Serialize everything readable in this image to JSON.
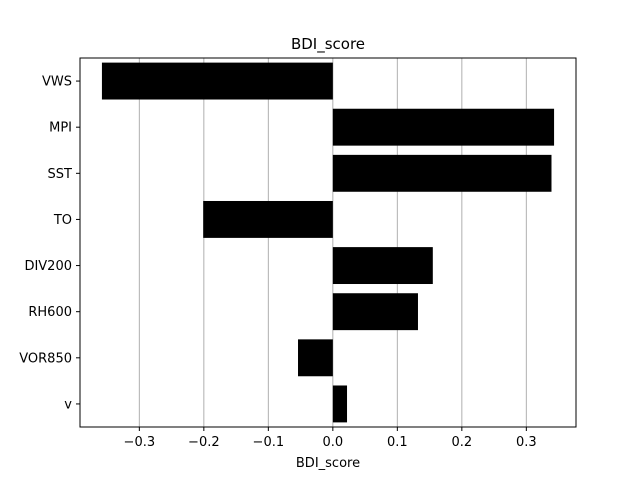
{
  "chart_data": {
    "type": "bar",
    "orientation": "horizontal",
    "title": "BDI_score",
    "xlabel": "BDI_score",
    "ylabel": "",
    "categories": [
      "VWS",
      "MPI",
      "SST",
      "TO",
      "DIV200",
      "RH600",
      "VOR850",
      "v"
    ],
    "values": [
      -0.358,
      0.343,
      0.339,
      -0.201,
      0.155,
      0.132,
      -0.054,
      0.022
    ],
    "xlim": [
      -0.392,
      0.377
    ],
    "xticks": [
      -0.3,
      -0.2,
      -0.1,
      0.0,
      0.1,
      0.2,
      0.3
    ],
    "xtick_labels": [
      "−0.3",
      "−0.2",
      "−0.1",
      "0.0",
      "0.1",
      "0.2",
      "0.3"
    ],
    "grid": "vertical",
    "legend": "none",
    "bar_color": "#000000",
    "grid_color": "#b0b0b0"
  }
}
